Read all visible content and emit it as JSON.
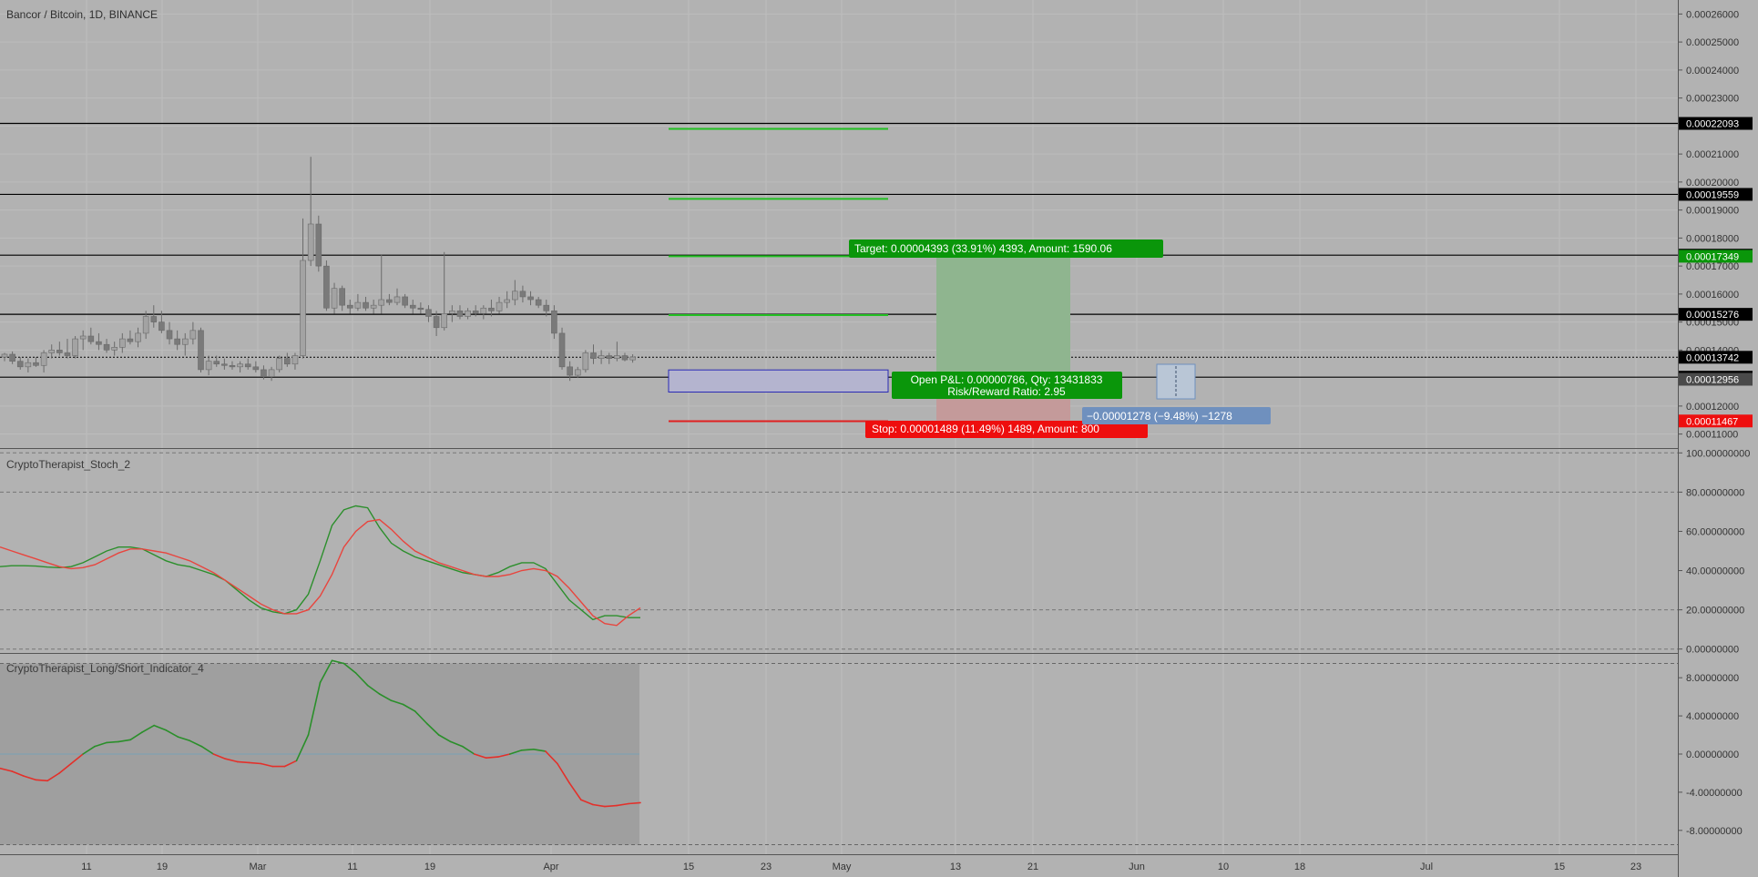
{
  "header": {
    "title": "Bancor / Bitcoin, 1D, BINANCE"
  },
  "panes": {
    "stoch_title": "CryptoTherapist_Stoch_2",
    "ls_title": "CryptoTherapist_Long/Short_Indicator_4"
  },
  "colors": {
    "background": "#b2b2b2",
    "candle": "#8e8e8e",
    "green": "#1f9e1f",
    "red": "#e0261f",
    "level": "#000000",
    "target_fill": "#8fb58f",
    "stop_fill": "#c49a9a",
    "entry_box": "#2a2ab5",
    "measure": "#6f90be"
  },
  "chart_data": [
    {
      "type": "candlestick",
      "title": "Bancor / Bitcoin, 1D, BINANCE",
      "ylim": [
        0.000105,
        0.000265
      ],
      "y_ticks": [
        "0.00011000",
        "0.00012000",
        "0.00013000",
        "0.00014000",
        "0.00015000",
        "0.00016000",
        "0.00017000",
        "0.00018000",
        "0.00019000",
        "0.00020000",
        "0.00021000",
        "0.00022000",
        "0.00023000",
        "0.00024000",
        "0.00025000",
        "0.00026000"
      ],
      "x_ticks": [
        "11",
        "19",
        "Mar",
        "11",
        "19",
        "Apr",
        "15",
        "23",
        "May",
        "13",
        "21",
        "Jun",
        "10",
        "18",
        "Jul",
        "15",
        "23"
      ],
      "series": [
        {
          "values": [
            [
              0.0001375,
              0.000139,
              0.000136,
              0.0001385
            ],
            [
              0.0001385,
              0.0001395,
              0.000135,
              0.000136
            ],
            [
              0.000136,
              0.0001375,
              0.000133,
              0.000134
            ],
            [
              0.000134,
              0.000137,
              0.000132,
              0.0001355
            ],
            [
              0.0001355,
              0.0001375,
              0.000134,
              0.0001345
            ],
            [
              0.0001345,
              0.00014,
              0.000132,
              0.000139
            ],
            [
              0.000139,
              0.000142,
              0.000137,
              0.00014
            ],
            [
              0.00014,
              0.000143,
              0.000138,
              0.000139
            ],
            [
              0.000139,
              0.000144,
              0.000137,
              0.000138
            ],
            [
              0.000138,
              0.000145,
              0.000137,
              0.000144
            ],
            [
              0.000144,
              0.000147,
              0.00014,
              0.000145
            ],
            [
              0.000145,
              0.000148,
              0.000142,
              0.000143
            ],
            [
              0.000143,
              0.000146,
              0.00014,
              0.000142
            ],
            [
              0.000142,
              0.000144,
              0.000139,
              0.00014
            ],
            [
              0.00014,
              0.000143,
              0.000138,
              0.000141
            ],
            [
              0.000141,
              0.000146,
              0.000139,
              0.000144
            ],
            [
              0.000144,
              0.000147,
              0.000142,
              0.000143
            ],
            [
              0.000143,
              0.000148,
              0.000141,
              0.000146
            ],
            [
              0.000146,
              0.000154,
              0.000144,
              0.000152
            ],
            [
              0.000152,
              0.000156,
              0.000148,
              0.00015
            ],
            [
              0.00015,
              0.000154,
              0.000146,
              0.000147
            ],
            [
              0.000147,
              0.00015,
              0.000142,
              0.000144
            ],
            [
              0.000144,
              0.000147,
              0.00014,
              0.000142
            ],
            [
              0.000142,
              0.000146,
              0.000138,
              0.000144
            ],
            [
              0.000144,
              0.00015,
              0.000142,
              0.000147
            ],
            [
              0.000147,
              0.000148,
              0.000132,
              0.000133
            ],
            [
              0.000133,
              0.000138,
              0.000131,
              0.000136
            ],
            [
              0.000136,
              0.000138,
              0.000134,
              0.000135
            ],
            [
              0.000135,
              0.000137,
              0.000133,
              0.0001345
            ],
            [
              0.0001345,
              0.000136,
              0.000133,
              0.000134
            ],
            [
              0.000134,
              0.000136,
              0.000132,
              0.000135
            ],
            [
              0.000135,
              0.000137,
              0.000133,
              0.000134
            ],
            [
              0.000134,
              0.000136,
              0.000132,
              0.000133
            ],
            [
              0.000133,
              0.0001345,
              0.0001295,
              0.0001305
            ],
            [
              0.0001305,
              0.000134,
              0.000129,
              0.000133
            ],
            [
              0.000133,
              0.000138,
              0.000132,
              0.000137
            ],
            [
              0.000137,
              0.000139,
              0.000134,
              0.000135
            ],
            [
              0.000135,
              0.000139,
              0.000133,
              0.000138
            ],
            [
              0.000138,
              0.000187,
              0.000137,
              0.000172
            ],
            [
              0.000172,
              0.000209,
              0.00017,
              0.000185
            ],
            [
              0.000185,
              0.000188,
              0.000168,
              0.00017
            ],
            [
              0.00017,
              0.000172,
              0.000154,
              0.000155
            ],
            [
              0.000155,
              0.000164,
              0.000153,
              0.000162
            ],
            [
              0.000162,
              0.000163,
              0.000154,
              0.000156
            ],
            [
              0.000156,
              0.000158,
              0.000153,
              0.000155
            ],
            [
              0.000155,
              0.00016,
              0.000154,
              0.000157
            ],
            [
              0.000157,
              0.000159,
              0.000154,
              0.000155
            ],
            [
              0.000155,
              0.000158,
              0.000153,
              0.000156
            ],
            [
              0.000156,
              0.000174,
              0.000153,
              0.000158
            ],
            [
              0.000158,
              0.00016,
              0.000156,
              0.000157
            ],
            [
              0.000157,
              0.000162,
              0.000156,
              0.000159
            ],
            [
              0.000159,
              0.00016,
              0.000155,
              0.000156
            ],
            [
              0.000156,
              0.000158,
              0.000153,
              0.000155
            ],
            [
              0.000155,
              0.000157,
              0.000153,
              0.0001545
            ],
            [
              0.0001545,
              0.000156,
              0.00015,
              0.000152
            ],
            [
              0.000152,
              0.000154,
              0.000145,
              0.000148
            ],
            [
              0.000148,
              0.000175,
              0.000147,
              0.000153
            ],
            [
              0.000153,
              0.000156,
              0.00015,
              0.000154
            ],
            [
              0.000154,
              0.000156,
              0.000151,
              0.000152
            ],
            [
              0.000152,
              0.000155,
              0.000151,
              0.000154
            ],
            [
              0.000154,
              0.000156,
              0.000152,
              0.000153
            ],
            [
              0.000153,
              0.000156,
              0.000151,
              0.000155
            ],
            [
              0.000155,
              0.000158,
              0.000152,
              0.000154
            ],
            [
              0.000154,
              0.000159,
              0.000153,
              0.000157
            ],
            [
              0.000157,
              0.000161,
              0.000155,
              0.000158
            ],
            [
              0.000158,
              0.000165,
              0.000156,
              0.000161
            ],
            [
              0.000161,
              0.000163,
              0.000157,
              0.000159
            ],
            [
              0.000159,
              0.000161,
              0.000156,
              0.000158
            ],
            [
              0.000158,
              0.000159,
              0.000155,
              0.000156
            ],
            [
              0.000156,
              0.000158,
              0.000152,
              0.000154
            ],
            [
              0.000154,
              0.000156,
              0.000144,
              0.000146
            ],
            [
              0.000146,
              0.000148,
              0.000133,
              0.000134
            ],
            [
              0.000134,
              0.000136,
              0.000129,
              0.000131
            ],
            [
              0.000131,
              0.000134,
              0.00013,
              0.000133
            ],
            [
              0.000133,
              0.00014,
              0.000132,
              0.000139
            ],
            [
              0.000139,
              0.000142,
              0.000135,
              0.000137
            ],
            [
              0.000137,
              0.00014,
              0.000135,
              0.000138
            ],
            [
              0.000138,
              0.000139,
              0.000135,
              0.000137
            ],
            [
              0.000137,
              0.000143,
              0.000136,
              0.000138
            ],
            [
              0.000138,
              0.000139,
              0.000136,
              0.0001365
            ],
            [
              0.0001365,
              0.0001385,
              0.0001355,
              0.0001375
            ]
          ]
        }
      ],
      "price_labels": [
        "0.00022093",
        "0.00019559",
        "0.00017388",
        "0.00017349",
        "0.00015276",
        "0.00013742",
        "0.00013031",
        "0.00012956",
        "0.00011467"
      ],
      "levels": [
        0.00022093,
        0.00019559,
        0.00017388,
        0.00015276,
        0.00013031
      ],
      "current_price": 0.00013742,
      "targets": [
        0.000219,
        0.000194,
        0.0001735,
        0.0001525
      ],
      "stop_level": 0.0001146,
      "position": {
        "entry": 0.00012956,
        "target": 0.00017349,
        "stop": 0.00011467,
        "target_label": "Target: 0.00004393 (33.91%) 4393, Amount: 1590.06",
        "pnl_label": "Open P&L: 0.00000786, Qty: 13431833",
        "rr_label": "Risk/Reward Ratio: 2.95",
        "stop_label": "Stop: 0.00001489 (11.49%) 1489, Amount: 800"
      },
      "measure_label": "−0.00001278 (−9.48%) −1278"
    },
    {
      "type": "line",
      "title": "CryptoTherapist_Stoch_2",
      "ylim": [
        -2,
        102
      ],
      "y_ticks": [
        "100.00000000",
        "80.00000000",
        "60.00000000",
        "40.00000000",
        "20.00000000",
        "0.00000000"
      ],
      "levels": [
        100,
        80,
        20,
        0
      ],
      "series": [
        {
          "values": [
            42,
            42.5,
            42.5,
            42.3,
            41.8,
            41.5,
            42,
            44,
            47,
            50,
            52,
            52,
            51,
            48,
            45,
            43,
            42,
            40,
            38,
            35,
            30,
            25,
            21,
            19,
            18,
            20,
            28,
            45,
            63,
            71,
            73,
            72,
            62,
            54,
            50,
            47,
            45,
            43,
            41,
            39,
            38,
            37,
            39,
            42,
            44,
            44,
            41,
            33,
            25,
            20,
            15,
            17,
            17,
            16,
            16
          ]
        },
        {
          "values": [
            52,
            50,
            48,
            46,
            44,
            42,
            41,
            41.5,
            43,
            46,
            49,
            51,
            51,
            50,
            49,
            47,
            45,
            42,
            39,
            35,
            31,
            27,
            23,
            20,
            18,
            18,
            20,
            27,
            38,
            52,
            60,
            65,
            66,
            61,
            55,
            50,
            47,
            44,
            42,
            40,
            38,
            37,
            37,
            38,
            40,
            41,
            40,
            37,
            31,
            24,
            17,
            13,
            12,
            17,
            21
          ]
        }
      ]
    },
    {
      "type": "line",
      "title": "CryptoTherapist_Long/Short_Indicator_4",
      "ylim": [
        -10.5,
        10.5
      ],
      "y_ticks": [
        "8.00000000",
        "4.00000000",
        "0.00000000",
        "-4.00000000",
        "-8.00000000"
      ],
      "levels": [
        9.5,
        -9.5
      ],
      "zero_line": 0,
      "series": [
        {
          "values": [
            -1.5,
            -1.8,
            -2.3,
            -2.7,
            -2.8,
            -2.0,
            -1.0,
            0,
            0.8,
            1.2,
            1.3,
            1.5,
            2.3,
            3.0,
            2.5,
            1.8,
            1.4,
            0.8,
            0,
            -0.5,
            -0.8,
            -0.9,
            -1.0,
            -1.3,
            -1.3,
            -0.7,
            2.0,
            7.5,
            9.8,
            9.5,
            8.5,
            7.2,
            6.3,
            5.6,
            5.2,
            4.5,
            3.2,
            2.0,
            1.3,
            0.8,
            0,
            -0.4,
            -0.3,
            0,
            0.4,
            0.5,
            0.3,
            -1.0,
            -3.0,
            -4.8,
            -5.3,
            -5.5,
            -5.4,
            -5.2,
            -5.1
          ]
        }
      ]
    }
  ]
}
